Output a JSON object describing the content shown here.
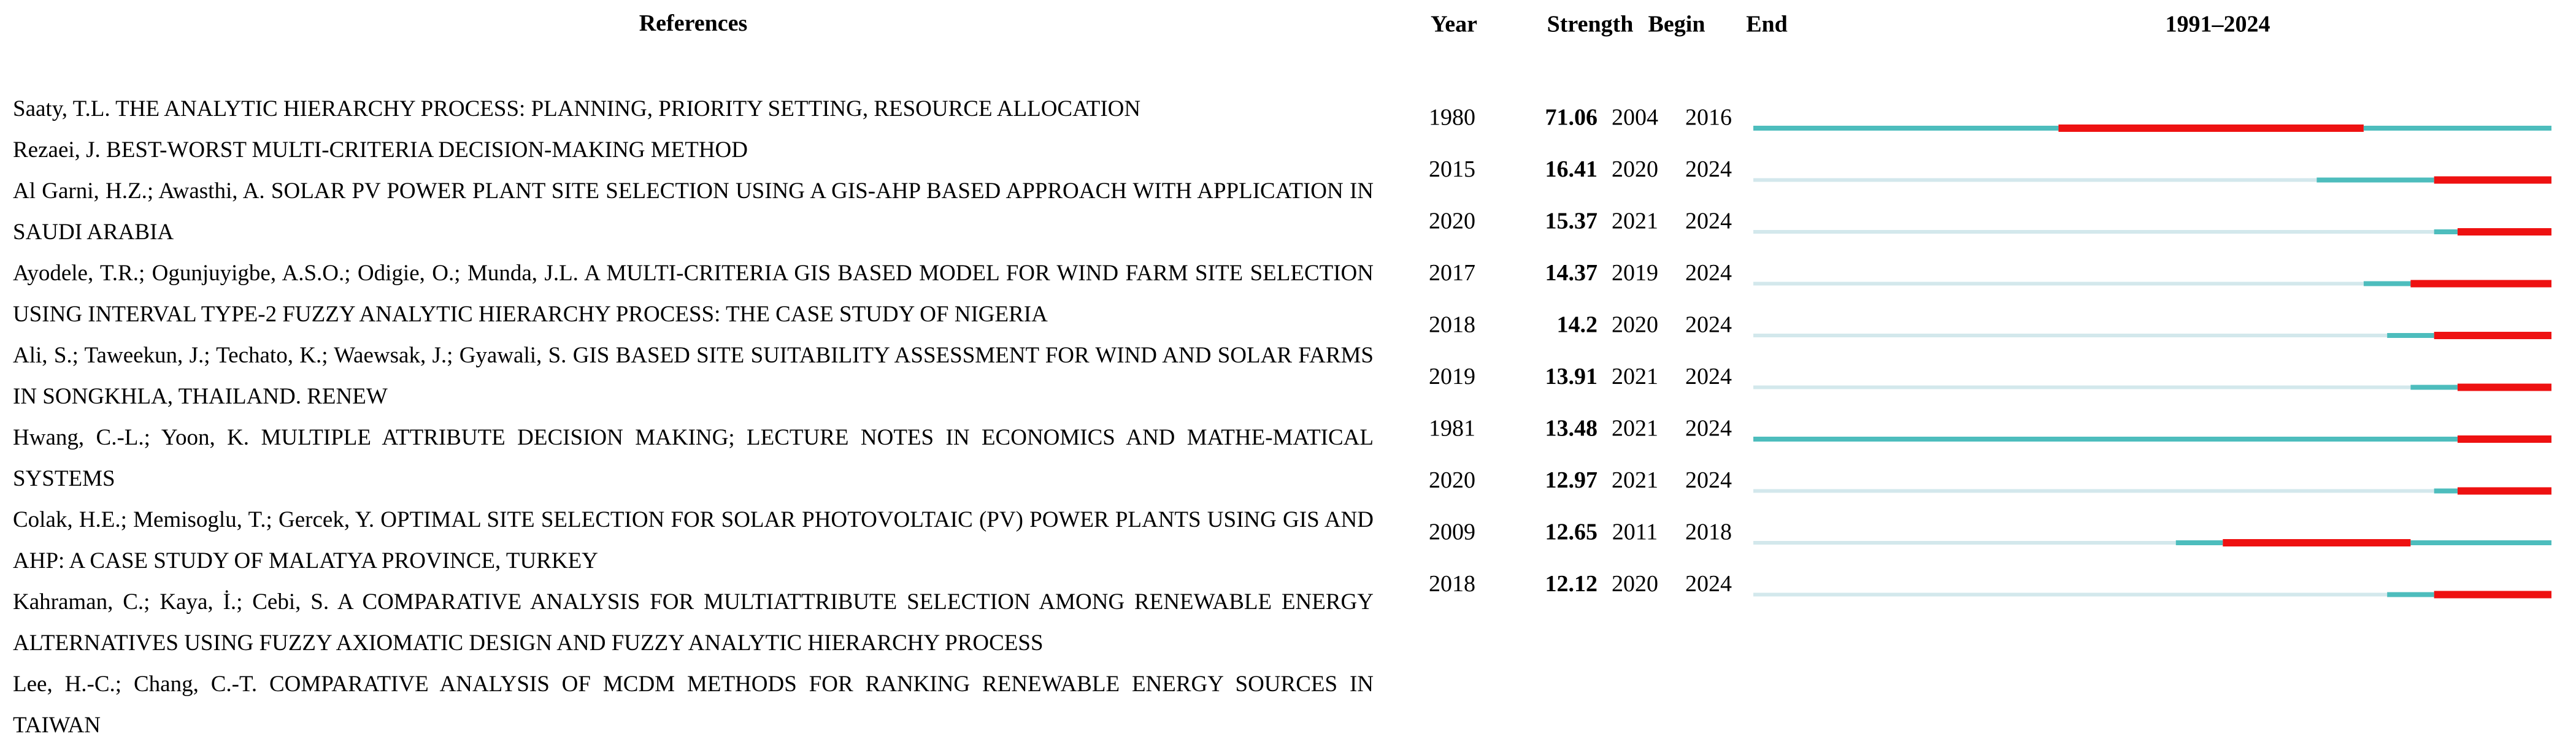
{
  "headers": {
    "references": "References",
    "year": "Year",
    "strength": "Strength",
    "begin": "Begin",
    "end": "End"
  },
  "timeline": {
    "label": "1991–2024",
    "start": 1991,
    "end": 2024
  },
  "rows": [
    {
      "reference": "Saaty, T.L. THE ANALYTIC HIERARCHY PROCESS: PLANNING, PRIORITY SETTING, RESOURCE ALLOCATION",
      "year": 1980,
      "strength": 71.06,
      "begin": 2004,
      "end": 2016
    },
    {
      "reference": "Rezaei, J. BEST-WORST MULTI-CRITERIA DECISION-MAKING METHOD",
      "year": 2015,
      "strength": 16.41,
      "begin": 2020,
      "end": 2024
    },
    {
      "reference": "Al Garni, H.Z.; Awasthi, A. SOLAR PV POWER PLANT SITE SELECTION USING A GIS-AHP BASED APPROACH WITH APPLICATION IN SAUDI ARABIA",
      "year": 2020,
      "strength": 15.37,
      "begin": 2021,
      "end": 2024
    },
    {
      "reference": "Ayodele, T.R.; Ogunjuyigbe, A.S.O.; Odigie, O.; Munda, J.L. A MULTI-CRITERIA GIS BASED MODEL FOR WIND FARM SITE SELECTION USING INTERVAL TYPE-2 FUZZY ANALYTIC HIERARCHY PROCESS: THE CASE STUDY OF NIGERIA",
      "year": 2017,
      "strength": 14.37,
      "begin": 2019,
      "end": 2024
    },
    {
      "reference": "Ali, S.; Taweekun, J.; Techato, K.; Waewsak, J.; Gyawali, S. GIS BASED SITE SUITABILITY ASSESSMENT FOR WIND AND SOLAR FARMS IN SONGKHLA, THAILAND. RENEW",
      "year": 2018,
      "strength": 14.2,
      "begin": 2020,
      "end": 2024
    },
    {
      "reference": "Hwang, C.-L.; Yoon, K. MULTIPLE ATTRIBUTE DECISION MAKING; LECTURE NOTES IN ECONOMICS AND MATHE-MATICAL SYSTEMS",
      "year": 2019,
      "strength": 13.91,
      "begin": 2021,
      "end": 2024
    },
    {
      "reference": "Colak, H.E.; Memisoglu, T.; Gercek, Y. OPTIMAL SITE SELECTION FOR SOLAR PHOTOVOLTAIC (PV) POWER PLANTS USING GIS AND AHP: A CASE STUDY OF MALATYA PROVINCE, TURKEY",
      "year": 1981,
      "strength": 13.48,
      "begin": 2021,
      "end": 2024
    },
    {
      "reference": "Kahraman, C.; Kaya, İ.; Cebi, S. A COMPARATIVE ANALYSIS FOR MULTIATTRIBUTE SELECTION AMONG RENEWABLE ENERGY ALTERNATIVES USING FUZZY AXIOMATIC DESIGN AND FUZZY ANALYTIC HIERARCHY PROCESS",
      "year": 2020,
      "strength": 12.97,
      "begin": 2021,
      "end": 2024
    },
    {
      "reference": "Lee, H.-C.; Chang, C.-T. COMPARATIVE ANALYSIS OF MCDM METHODS FOR RANKING RENEWABLE ENERGY SOURCES IN TAIWAN",
      "year": 2009,
      "strength": 12.65,
      "begin": 2011,
      "end": 2018
    },
    {
      "reference": null,
      "year": 2018,
      "strength": 12.12,
      "begin": 2020,
      "end": 2024
    }
  ]
}
